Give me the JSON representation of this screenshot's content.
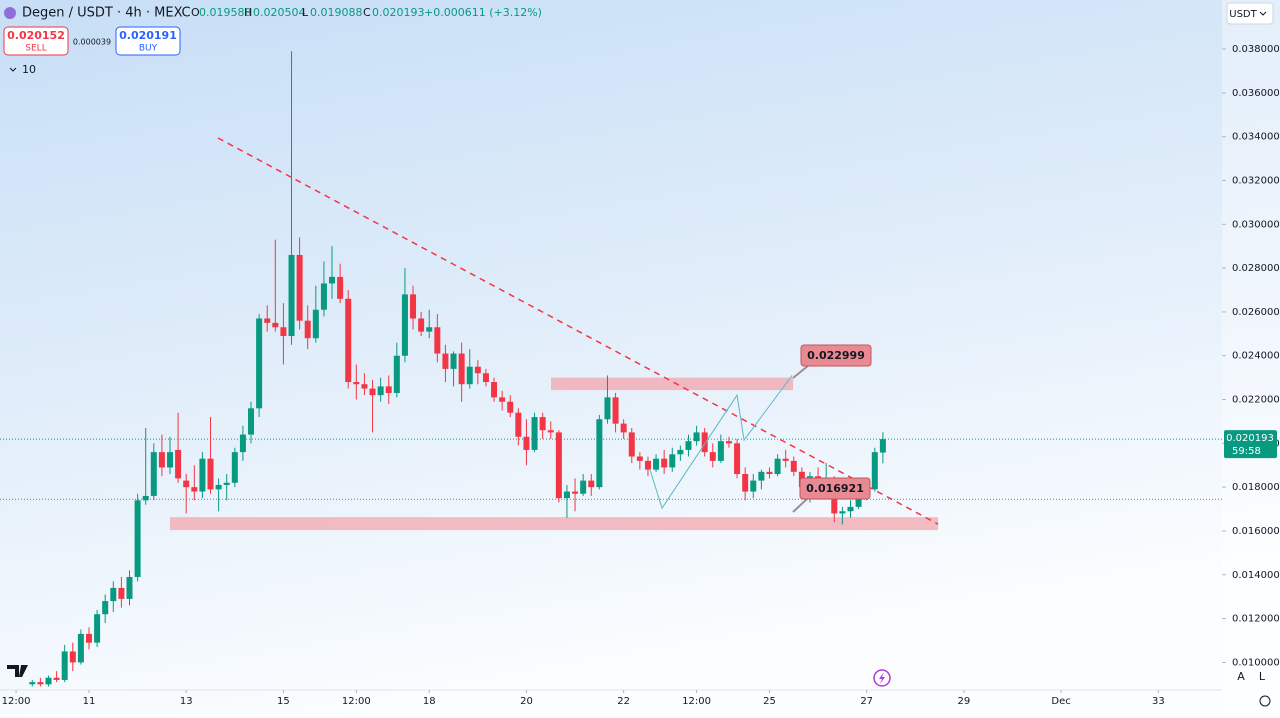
{
  "header": {
    "symbol": "Degen / USDT · 4h · MEXC",
    "ohlc": [
      {
        "key": "O",
        "value": "0.019580"
      },
      {
        "key": "H",
        "value": "0.020504"
      },
      {
        "key": "L",
        "value": "0.019088"
      },
      {
        "key": "C",
        "value": "0.020193"
      }
    ],
    "change": "+0.000611 (+3.12%)",
    "sell_price": "0.020152",
    "sell_label": "SELL",
    "spread": "0.000039",
    "buy_price": "0.020191",
    "buy_label": "BUY",
    "indicator_count": "10",
    "currency": "USDT",
    "auto_button": "A",
    "log_button": "L"
  },
  "chart_data": {
    "type": "candlestick",
    "up_color": "#089981",
    "down_color": "#f23645",
    "grid": false,
    "x": [
      9.8333,
      10,
      10.1667,
      10.3333,
      10.5,
      10.6667,
      10.8333,
      11,
      11.1667,
      11.3333,
      11.5,
      11.6667,
      11.8333,
      12,
      12.1667,
      12.3333,
      12.5,
      12.6667,
      12.8333,
      13,
      13.1667,
      13.3333,
      13.5,
      13.6667,
      13.8333,
      14,
      14.1667,
      14.3333,
      14.5,
      14.6667,
      14.8333,
      15,
      15.1667,
      15.3333,
      15.5,
      15.6667,
      15.8333,
      16,
      16.1667,
      16.3333,
      16.5,
      16.6667,
      16.8333,
      17,
      17.1667,
      17.3333,
      17.5,
      17.6667,
      17.8333,
      18,
      18.1667,
      18.3333,
      18.5,
      18.6667,
      18.8333,
      19,
      19.1667,
      19.3333,
      19.5,
      19.6667,
      19.8333,
      20,
      20.1667,
      20.3333,
      20.5,
      20.6667,
      20.8333,
      21,
      21.1667,
      21.3333,
      21.5,
      21.6667,
      21.8333,
      22,
      22.1667,
      22.3333,
      22.5,
      22.6667,
      22.8333,
      23,
      23.1667,
      23.3333,
      23.5,
      23.6667,
      23.8333,
      24,
      24.1667,
      24.3333,
      24.5,
      24.6667,
      24.8333,
      25,
      25.1667,
      25.3333,
      25.5,
      25.6667,
      25.8333,
      26,
      26.1667,
      26.3333,
      26.5,
      26.6667,
      26.8333,
      27,
      27.1667,
      27.3333
    ],
    "open": [
      0.009,
      0.0091,
      0.009,
      0.0093,
      0.0092,
      0.0105,
      0.01,
      0.0113,
      0.0109,
      0.0122,
      0.0128,
      0.0134,
      0.0129,
      0.0139,
      0.0174,
      0.0176,
      0.0196,
      0.0189,
      0.0197,
      0.0183,
      0.018,
      0.0178,
      0.0193,
      0.0179,
      0.0181,
      0.0182,
      0.0196,
      0.0204,
      0.0216,
      0.0257,
      0.0255,
      0.0253,
      0.0249,
      0.0286,
      0.0256,
      0.0248,
      0.0261,
      0.0273,
      0.0276,
      0.0266,
      0.0228,
      0.0227,
      0.0225,
      0.0222,
      0.0226,
      0.0223,
      0.024,
      0.0268,
      0.0257,
      0.0251,
      0.0253,
      0.0241,
      0.0234,
      0.0241,
      0.0227,
      0.0235,
      0.0232,
      0.0228,
      0.0221,
      0.0219,
      0.0214,
      0.0203,
      0.0197,
      0.0212,
      0.0206,
      0.0205,
      0.0175,
      0.0178,
      0.0177,
      0.0183,
      0.018,
      0.0211,
      0.0221,
      0.0209,
      0.0205,
      0.0194,
      0.0192,
      0.0188,
      0.0193,
      0.0189,
      0.0195,
      0.0197,
      0.0201,
      0.0205,
      0.0196,
      0.0192,
      0.0201,
      0.02,
      0.0186,
      0.0178,
      0.0183,
      0.0187,
      0.0186,
      0.0193,
      0.0192,
      0.0187,
      0.018,
      0.0185,
      0.0182,
      0.0184,
      0.0168,
      0.0169,
      0.0171,
      0.0176,
      0.0179,
      0.01958
    ],
    "high": [
      0.0092,
      0.0093,
      0.0094,
      0.0096,
      0.0108,
      0.0109,
      0.0115,
      0.0116,
      0.0124,
      0.0131,
      0.0137,
      0.0139,
      0.0142,
      0.0177,
      0.0207,
      0.02,
      0.0204,
      0.0203,
      0.0214,
      0.0186,
      0.019,
      0.0196,
      0.0212,
      0.0184,
      0.0186,
      0.0198,
      0.0208,
      0.0219,
      0.0259,
      0.0263,
      0.0293,
      0.0264,
      0.0379,
      0.0294,
      0.0263,
      0.0272,
      0.0283,
      0.029,
      0.0282,
      0.027,
      0.0236,
      0.0232,
      0.0229,
      0.023,
      0.0231,
      0.0246,
      0.028,
      0.0272,
      0.026,
      0.0261,
      0.0259,
      0.0245,
      0.0242,
      0.0246,
      0.0243,
      0.0238,
      0.0234,
      0.023,
      0.0224,
      0.0222,
      0.0216,
      0.0211,
      0.0214,
      0.0214,
      0.021,
      0.0206,
      0.0181,
      0.0184,
      0.0186,
      0.0186,
      0.0213,
      0.0231,
      0.0223,
      0.0211,
      0.0207,
      0.0196,
      0.0194,
      0.0195,
      0.0197,
      0.0198,
      0.0199,
      0.0204,
      0.0208,
      0.0207,
      0.02,
      0.0204,
      0.0203,
      0.0202,
      0.0189,
      0.0186,
      0.0188,
      0.0189,
      0.0195,
      0.0197,
      0.0194,
      0.0189,
      0.0187,
      0.0189,
      0.0191,
      0.0185,
      0.0171,
      0.0174,
      0.0178,
      0.0182,
      0.0198,
      0.020504
    ],
    "low": [
      0.0089,
      0.0089,
      0.0089,
      0.0091,
      0.0091,
      0.0096,
      0.0099,
      0.0106,
      0.0107,
      0.0118,
      0.0123,
      0.0125,
      0.0126,
      0.0137,
      0.0172,
      0.0174,
      0.0185,
      0.0186,
      0.0182,
      0.0168,
      0.0174,
      0.0175,
      0.0177,
      0.0169,
      0.0174,
      0.018,
      0.0192,
      0.02,
      0.0212,
      0.0251,
      0.0251,
      0.0236,
      0.0245,
      0.0252,
      0.0243,
      0.0246,
      0.0258,
      0.0266,
      0.0264,
      0.0225,
      0.022,
      0.0222,
      0.0205,
      0.0219,
      0.0218,
      0.0221,
      0.0237,
      0.0252,
      0.0249,
      0.0248,
      0.0237,
      0.0228,
      0.0226,
      0.0219,
      0.0225,
      0.0227,
      0.0226,
      0.0219,
      0.0215,
      0.0212,
      0.0199,
      0.019,
      0.0196,
      0.0202,
      0.0202,
      0.0173,
      0.0166,
      0.0169,
      0.0176,
      0.0176,
      0.0179,
      0.0209,
      0.0205,
      0.0202,
      0.0191,
      0.0188,
      0.0185,
      0.0187,
      0.0186,
      0.0187,
      0.0192,
      0.0194,
      0.0199,
      0.0194,
      0.0189,
      0.0191,
      0.0198,
      0.0184,
      0.0174,
      0.0175,
      0.0179,
      0.0184,
      0.0185,
      0.0189,
      0.0185,
      0.0175,
      0.0173,
      0.0178,
      0.0179,
      0.0164,
      0.0163,
      0.0166,
      0.017,
      0.0174,
      0.0178,
      0.019088
    ],
    "close": [
      0.0091,
      0.009,
      0.0093,
      0.0092,
      0.0105,
      0.01,
      0.0113,
      0.0109,
      0.0122,
      0.0128,
      0.0134,
      0.0129,
      0.0139,
      0.0174,
      0.0176,
      0.0196,
      0.0189,
      0.0196,
      0.0184,
      0.018,
      0.0178,
      0.0193,
      0.0179,
      0.0181,
      0.0182,
      0.0196,
      0.0204,
      0.0216,
      0.0257,
      0.0255,
      0.0253,
      0.0249,
      0.0286,
      0.0256,
      0.0248,
      0.0261,
      0.0273,
      0.0276,
      0.0266,
      0.0228,
      0.0227,
      0.0225,
      0.0222,
      0.0226,
      0.0223,
      0.024,
      0.0268,
      0.0257,
      0.0251,
      0.0253,
      0.0241,
      0.0234,
      0.0241,
      0.0227,
      0.0235,
      0.0232,
      0.0228,
      0.0221,
      0.0219,
      0.0214,
      0.0203,
      0.0197,
      0.0212,
      0.0206,
      0.0205,
      0.0175,
      0.0178,
      0.0177,
      0.0183,
      0.018,
      0.0211,
      0.0221,
      0.0209,
      0.0205,
      0.0194,
      0.0192,
      0.0188,
      0.0193,
      0.0189,
      0.0195,
      0.0197,
      0.0201,
      0.0205,
      0.0196,
      0.0192,
      0.0201,
      0.02,
      0.0186,
      0.0178,
      0.0183,
      0.0187,
      0.0186,
      0.0193,
      0.0192,
      0.0187,
      0.018,
      0.0185,
      0.0182,
      0.0184,
      0.0168,
      0.0169,
      0.0171,
      0.0176,
      0.0179,
      0.0196,
      0.020193
    ],
    "xlim": [
      9.169,
      34.31
    ],
    "ylim": [
      0.00874,
      0.04024
    ],
    "xticks": [
      {
        "value": 9.5,
        "label": "12:00"
      },
      11,
      13,
      15,
      {
        "value": 16.5,
        "label": "12:00"
      },
      18,
      20,
      22,
      {
        "value": 23.5,
        "label": "12:00"
      },
      25,
      27,
      29,
      {
        "value": 31,
        "label": "Dec"
      },
      33
    ],
    "yticks": [
      {
        "value": 0.01,
        "label": "0.010000"
      },
      {
        "value": 0.012,
        "label": "0.012000"
      },
      {
        "value": 0.014,
        "label": "0.014000"
      },
      {
        "value": 0.016,
        "label": "0.016000"
      },
      {
        "value": 0.018,
        "label": "0.018000"
      },
      {
        "value": 0.02,
        "label": "0.020000"
      },
      {
        "value": 0.022,
        "label": "0.022000"
      },
      {
        "value": 0.024,
        "label": "0.024000"
      },
      {
        "value": 0.026,
        "label": "0.026000"
      },
      {
        "value": 0.028,
        "label": "0.028000"
      },
      {
        "value": 0.03,
        "label": "0.030000"
      },
      {
        "value": 0.032,
        "label": "0.032000"
      },
      {
        "value": 0.034,
        "label": "0.034000"
      },
      {
        "value": 0.036,
        "label": "0.036000"
      },
      {
        "value": 0.038,
        "label": "0.038000"
      }
    ],
    "last_price": {
      "value": 0.020193,
      "label": "0.020193",
      "countdown": "59:58",
      "color": "#089981"
    },
    "price_lines": [
      0.01745
    ],
    "zones": [
      {
        "x": [
          20.506,
          25.486
        ],
        "y": [
          0.02243,
          0.023
        ],
        "color": "#f3a5ad"
      },
      {
        "x": [
          12.667,
          28.469
        ],
        "y": [
          0.01604,
          0.01663
        ],
        "color": "#f3a5ad"
      }
    ],
    "trendline": {
      "x": [
        13.654,
        28.47
      ],
      "y": [
        0.03394,
        0.01631
      ],
      "color": "#f23645"
    },
    "projection": {
      "x": [
        22.543,
        22.79,
        24.333,
        24.477,
        25.465
      ],
      "y": [
        0.01878,
        0.01704,
        0.0222,
        0.02015,
        0.0231
      ],
      "color": "#5fb8c9"
    },
    "annotations": [
      {
        "value": 0.022999,
        "label": "0.022999"
      },
      {
        "value": 0.016921,
        "label": "0.016921"
      }
    ]
  }
}
